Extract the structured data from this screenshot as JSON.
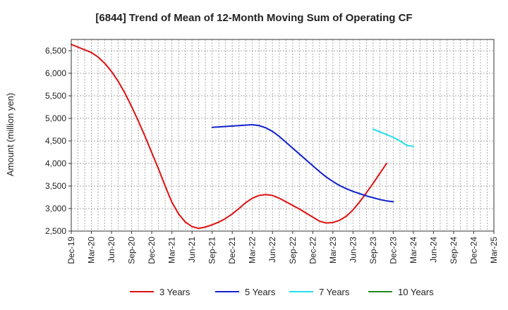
{
  "chart_data": {
    "type": "line",
    "title": "[6844]  Trend of Mean of 12-Month Moving Sum of Operating CF",
    "xlabel": "",
    "ylabel": "Amount (million yen)",
    "ylim": [
      2500,
      6750
    ],
    "yticks": [
      2500,
      3000,
      3500,
      4000,
      4500,
      5000,
      5500,
      6000,
      6500
    ],
    "ytick_labels": [
      "2,500",
      "3,000",
      "3,500",
      "4,000",
      "4,500",
      "5,000",
      "5,500",
      "6,000",
      "6,500"
    ],
    "x_start": "Dec-19",
    "x_months": 63,
    "xtick_labels": [
      "Dec-19",
      "Mar-20",
      "Jun-20",
      "Sep-20",
      "Dec-20",
      "Mar-21",
      "Jun-21",
      "Sep-21",
      "Dec-21",
      "Mar-22",
      "Jun-22",
      "Sep-22",
      "Dec-22",
      "Mar-23",
      "Jun-23",
      "Sep-23",
      "Dec-23",
      "Mar-24",
      "Jun-24",
      "Sep-24",
      "Dec-24",
      "Mar-25"
    ],
    "grid": true,
    "legend_position": "bottom",
    "series": [
      {
        "name": "3 Years",
        "color": "#dd1111",
        "start_month": 0,
        "values": [
          6640,
          6580,
          6520,
          6460,
          6360,
          6220,
          6040,
          5820,
          5560,
          5260,
          4940,
          4600,
          4240,
          3880,
          3500,
          3140,
          2880,
          2700,
          2600,
          2560,
          2590,
          2640,
          2700,
          2780,
          2880,
          3000,
          3130,
          3230,
          3290,
          3310,
          3290,
          3230,
          3150,
          3070,
          2990,
          2900,
          2810,
          2720,
          2680,
          2690,
          2740,
          2830,
          2970,
          3150,
          3350,
          3560,
          3780,
          4000
        ]
      },
      {
        "name": "5 Years",
        "color": "#1122cc",
        "start_month": 21,
        "values": [
          4800,
          4810,
          4820,
          4830,
          4840,
          4850,
          4860,
          4840,
          4790,
          4710,
          4600,
          4470,
          4340,
          4210,
          4080,
          3950,
          3820,
          3700,
          3600,
          3510,
          3440,
          3380,
          3330,
          3280,
          3240,
          3200,
          3170,
          3150
        ]
      },
      {
        "name": "7 Years",
        "color": "#22e0ee",
        "start_month": 45,
        "values": [
          4760,
          4700,
          4640,
          4580,
          4500,
          4400,
          4380
        ]
      },
      {
        "name": "10 Years",
        "color": "#228822",
        "start_month": 0,
        "values": []
      }
    ]
  }
}
